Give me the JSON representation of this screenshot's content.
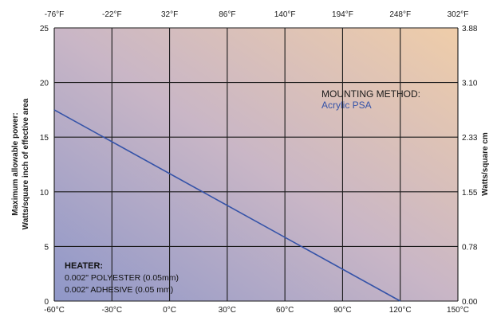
{
  "chart_data": {
    "type": "line",
    "x_bottom_label_unit": "°C",
    "x_ticks_bottom": [
      "-60°C",
      "-30°C",
      "0°C",
      "30°C",
      "60°C",
      "90°C",
      "120°C",
      "150°C"
    ],
    "x_ticks_top": [
      "-76°F",
      "-22°F",
      "32°F",
      "86°F",
      "140°F",
      "194°F",
      "248°F",
      "302°F"
    ],
    "y_ticks_left": [
      "0",
      "5",
      "10",
      "15",
      "20",
      "25"
    ],
    "y_ticks_right": [
      "0.00",
      "0.78",
      "1.55",
      "2.33",
      "3.10",
      "3.88"
    ],
    "xlim": [
      -60,
      150
    ],
    "ylim": [
      0,
      25
    ],
    "ylabel_left_line1": "Maximum allowable power:",
    "ylabel_left_line2": "Watts/square inch of effective area",
    "ylabel_right": "Watts/square cm",
    "grid": true,
    "series": [
      {
        "color": "#3553a8",
        "x": [
          -60,
          120
        ],
        "y": [
          17.5,
          0
        ]
      }
    ],
    "annotations": {
      "mounting_title": "MOUNTING METHOD:",
      "mounting_value": "Acrylic PSA",
      "mounting_value_color": "#3553a8",
      "heater_title": "HEATER:",
      "heater_line1": "0.002\" POLYESTER (0.05mm)",
      "heater_line2": "0.002\" ADHESIVE (0.05 mm)"
    }
  }
}
